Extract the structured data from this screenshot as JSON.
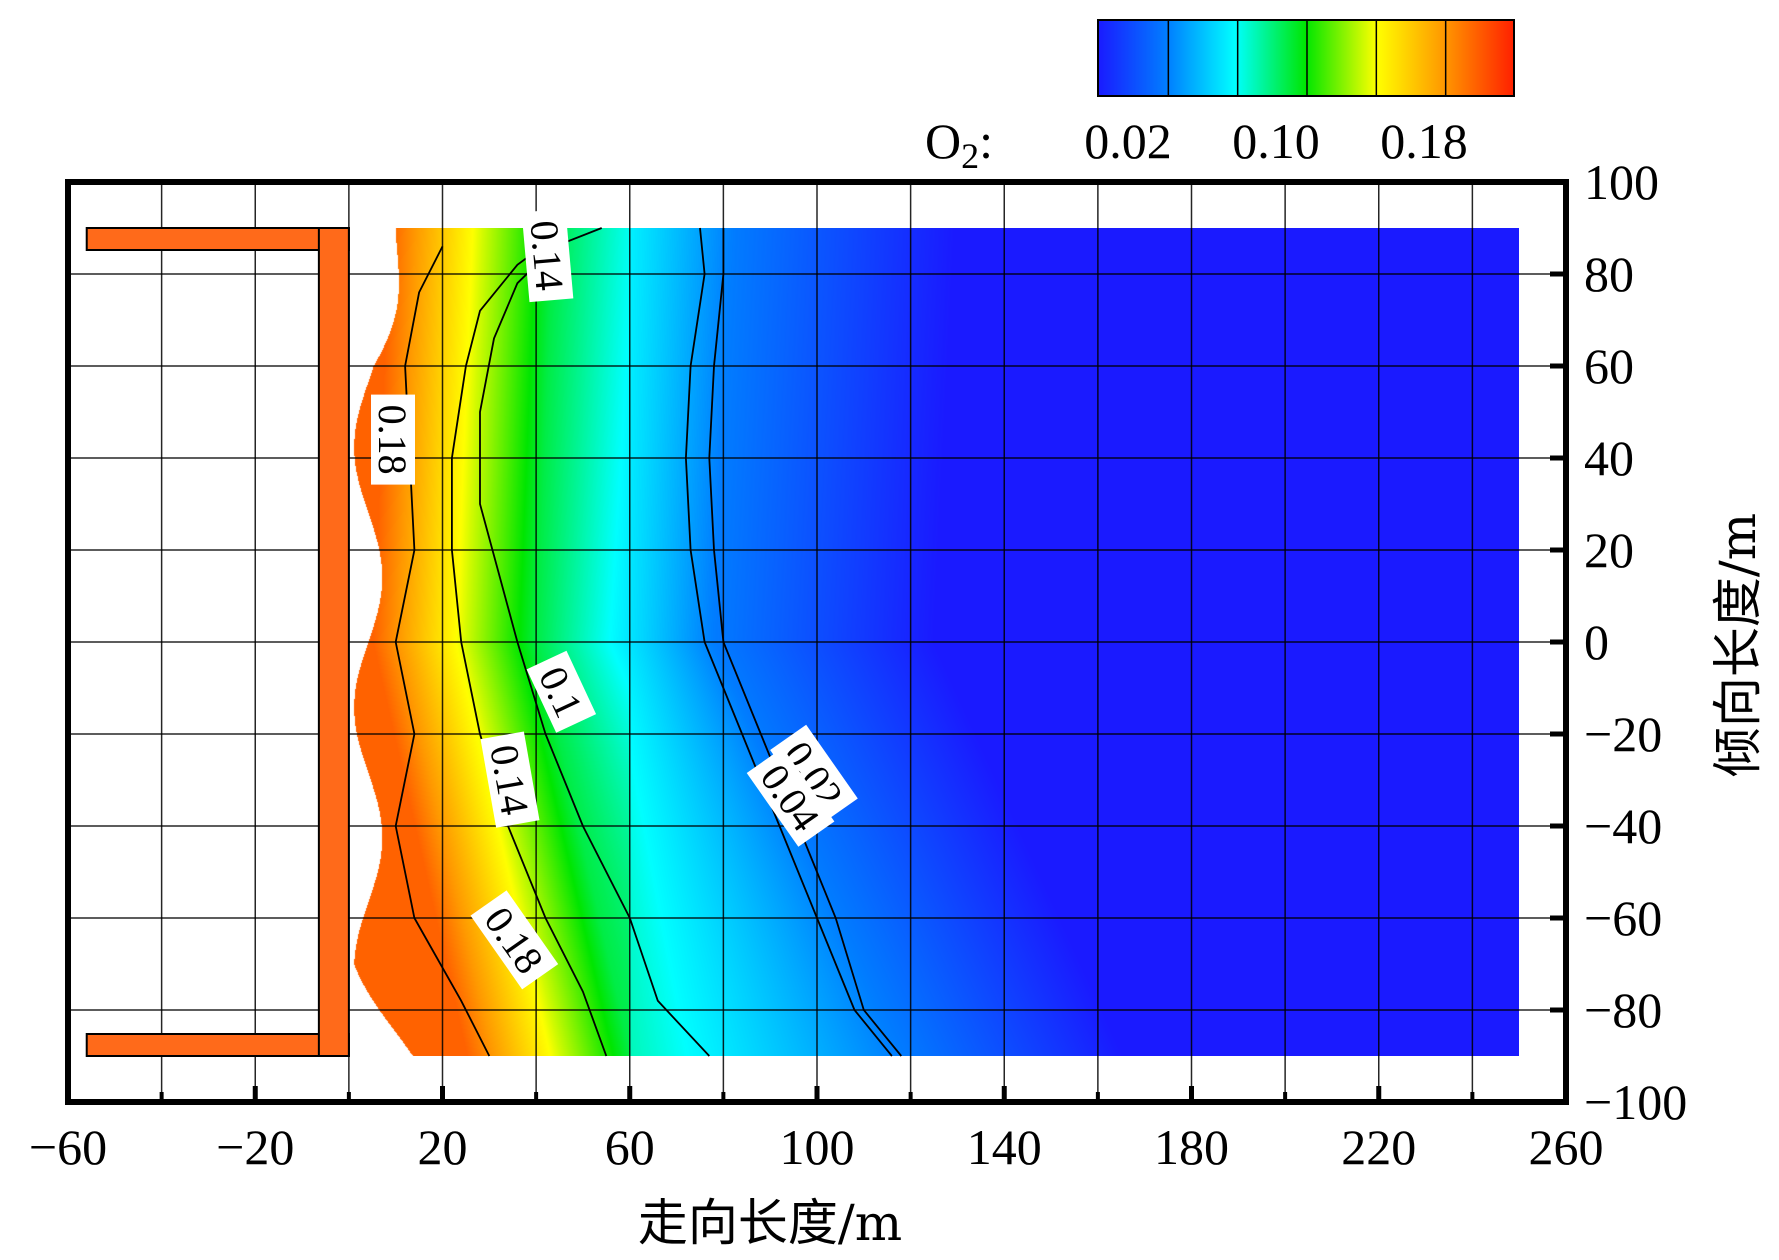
{
  "chart_data": {
    "type": "heatmap",
    "title": "",
    "xlabel": "走向长度/m",
    "ylabel": "倾向长度/m",
    "xlim": [
      -60,
      260
    ],
    "ylim": [
      -100,
      100
    ],
    "x_ticks": [
      "−60",
      "−20",
      "20",
      "60",
      "100",
      "140",
      "180",
      "220",
      "260"
    ],
    "x_tick_values": [
      -60,
      -20,
      20,
      60,
      100,
      140,
      180,
      220,
      260
    ],
    "y_ticks": [
      "100",
      "80",
      "60",
      "40",
      "20",
      "0",
      "−20",
      "−40",
      "−60",
      "−80",
      "−100"
    ],
    "y_tick_values": [
      100,
      80,
      60,
      40,
      20,
      0,
      -20,
      -40,
      -60,
      -80,
      -100
    ],
    "grid": true,
    "colorbar": {
      "variable_label": "O",
      "variable_subscript": "2",
      "variable_suffix": ":",
      "tick_labels": [
        "0.02",
        "0.10",
        "0.18"
      ],
      "colors": [
        "#1a1aff",
        "#0080ff",
        "#00ffff",
        "#00e600",
        "#ffff00",
        "#ff9900",
        "#ff2000"
      ],
      "position": "top-right"
    },
    "gob_region": {
      "x_range": [
        -56,
        0
      ],
      "y_range": [
        -90,
        90
      ],
      "fill_color": "#ff6a1a"
    },
    "contour_levels": [
      0.02,
      0.04,
      0.1,
      0.14,
      0.18
    ],
    "contours": [
      {
        "level": 0.02,
        "points": [
          [
            75,
            90
          ],
          [
            76,
            80
          ],
          [
            73,
            60
          ],
          [
            72,
            40
          ],
          [
            73,
            20
          ],
          [
            76,
            0
          ],
          [
            84,
            -20
          ],
          [
            92,
            -40
          ],
          [
            100,
            -60
          ],
          [
            108,
            -80
          ],
          [
            116,
            -90
          ]
        ]
      },
      {
        "level": 0.04,
        "points": [
          [
            80,
            90
          ],
          [
            80,
            80
          ],
          [
            78,
            60
          ],
          [
            77,
            40
          ],
          [
            78,
            20
          ],
          [
            80,
            0
          ],
          [
            88,
            -20
          ],
          [
            96,
            -40
          ],
          [
            104,
            -60
          ],
          [
            110,
            -80
          ],
          [
            118,
            -90
          ]
        ]
      },
      {
        "level": 0.1,
        "points": [
          [
            54,
            90
          ],
          [
            44,
            86
          ],
          [
            36,
            78
          ],
          [
            31,
            66
          ],
          [
            28,
            50
          ],
          [
            28,
            30
          ],
          [
            32,
            15
          ],
          [
            36,
            0
          ],
          [
            42,
            -20
          ],
          [
            50,
            -40
          ],
          [
            60,
            -60
          ],
          [
            66,
            -78
          ],
          [
            77,
            -90
          ]
        ]
      },
      {
        "level": 0.14,
        "points": [
          [
            44,
            88
          ],
          [
            36,
            82
          ],
          [
            28,
            72
          ],
          [
            25,
            60
          ],
          [
            22,
            40
          ],
          [
            22,
            20
          ],
          [
            24,
            0
          ],
          [
            28,
            -20
          ],
          [
            34,
            -40
          ],
          [
            42,
            -60
          ],
          [
            50,
            -76
          ],
          [
            55,
            -90
          ]
        ]
      },
      {
        "level": 0.18,
        "points": [
          [
            20,
            86
          ],
          [
            15,
            76
          ],
          [
            12,
            60
          ],
          [
            13,
            40
          ],
          [
            14,
            20
          ],
          [
            10,
            0
          ],
          [
            14,
            -20
          ],
          [
            10,
            -40
          ],
          [
            14,
            -60
          ],
          [
            24,
            -78
          ],
          [
            30,
            -90
          ]
        ]
      }
    ],
    "contour_labels": [
      {
        "text": "0.14",
        "x": 42,
        "y": 84,
        "angle": 85
      },
      {
        "text": "0.18",
        "x": 9,
        "y": 44,
        "angle": 90
      },
      {
        "text": "0.1",
        "x": 45,
        "y": -11,
        "angle": 65
      },
      {
        "text": "0.14",
        "x": 34,
        "y": -30,
        "angle": 80
      },
      {
        "text": "0.18",
        "x": 35,
        "y": -65,
        "angle": 55
      },
      {
        "text": "0.02",
        "x": 99,
        "y": -29,
        "angle": 55
      },
      {
        "text": "0.04",
        "x": 94,
        "y": -34,
        "angle": 55
      }
    ],
    "field_model": "O2 concentration decreases with strike distance from the working face at x=0; ~0.19 near x=5, ~0.14 at x≈25, ~0.10 at x≈40, ~0.04 at x≈78 (bulging further right toward y=-90), ~0.02 beyond x≈120"
  }
}
